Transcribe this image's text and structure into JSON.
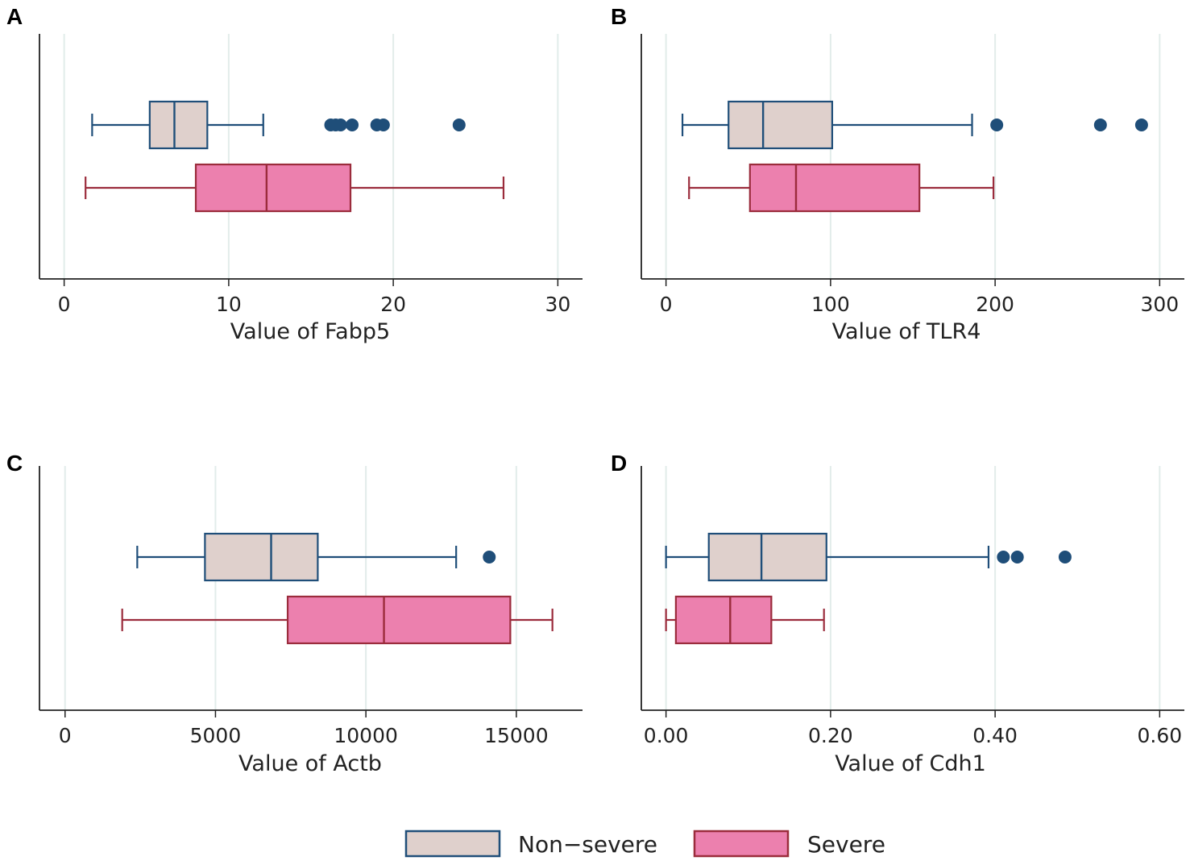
{
  "chart_data": [
    {
      "type": "boxplot",
      "panel_label": "A",
      "xlabel": "Value of Fabp5",
      "xlim": [
        -1.5,
        31.5
      ],
      "ticks": [
        0,
        10,
        20,
        30
      ],
      "tick_labels": [
        "0",
        "10",
        "20",
        "30"
      ],
      "grid": true,
      "series": [
        {
          "name": "Non−severe",
          "whisker_low": 1.7,
          "q1": 5.2,
          "median": 6.7,
          "q3": 8.7,
          "whisker_high": 12.1,
          "outliers": [
            16.2,
            16.5,
            16.8,
            17.5,
            19.0,
            19.4,
            24.0
          ]
        },
        {
          "name": "Severe",
          "whisker_low": 1.3,
          "q1": 8.0,
          "median": 12.3,
          "q3": 17.4,
          "whisker_high": 26.7,
          "outliers": []
        }
      ]
    },
    {
      "type": "boxplot",
      "panel_label": "B",
      "xlabel": "Value of TLR4",
      "xlim": [
        -15,
        315
      ],
      "ticks": [
        0,
        100,
        200,
        300
      ],
      "tick_labels": [
        "0",
        "100",
        "200",
        "300"
      ],
      "grid": true,
      "series": [
        {
          "name": "Non−severe",
          "whisker_low": 10,
          "q1": 38,
          "median": 59,
          "q3": 101,
          "whisker_high": 186,
          "outliers": [
            201,
            264,
            289
          ]
        },
        {
          "name": "Severe",
          "whisker_low": 14,
          "q1": 51,
          "median": 79,
          "q3": 154,
          "whisker_high": 199,
          "outliers": []
        }
      ]
    },
    {
      "type": "boxplot",
      "panel_label": "C",
      "xlabel": "Value of Actb",
      "xlim": [
        -850,
        17200
      ],
      "ticks": [
        0,
        5000,
        10000,
        15000
      ],
      "tick_labels": [
        "0",
        "5000",
        "10000",
        "15000"
      ],
      "grid": true,
      "series": [
        {
          "name": "Non−severe",
          "whisker_low": 2400,
          "q1": 4650,
          "median": 6850,
          "q3": 8400,
          "whisker_high": 13000,
          "outliers": [
            14100
          ]
        },
        {
          "name": "Severe",
          "whisker_low": 1900,
          "q1": 7400,
          "median": 10600,
          "q3": 14800,
          "whisker_high": 16200,
          "outliers": []
        }
      ]
    },
    {
      "type": "boxplot",
      "panel_label": "D",
      "xlabel": "Value of Cdh1",
      "xlim": [
        -0.03,
        0.63
      ],
      "ticks": [
        0,
        0.2,
        0.4,
        0.6
      ],
      "tick_labels": [
        "0.00",
        "0.20",
        "0.40",
        "0.60"
      ],
      "grid": true,
      "series": [
        {
          "name": "Non−severe",
          "whisker_low": 0.0,
          "q1": 0.052,
          "median": 0.116,
          "q3": 0.195,
          "whisker_high": 0.392,
          "outliers": [
            0.41,
            0.427,
            0.485
          ]
        },
        {
          "name": "Severe",
          "whisker_low": 0.0,
          "q1": 0.012,
          "median": 0.078,
          "q3": 0.128,
          "whisker_high": 0.192,
          "outliers": []
        }
      ]
    }
  ],
  "legend": {
    "placement": "bottom-center",
    "items": [
      {
        "label": "Non−severe",
        "fill": "#dfd0cc",
        "stroke": "#1f4e79"
      },
      {
        "label": "Severe",
        "fill": "#ec80ae",
        "stroke": "#9b2c3c"
      }
    ]
  },
  "colors": {
    "non_severe_fill": "#dfd0cc",
    "non_severe_stroke": "#1f4e79",
    "severe_fill": "#ec80ae",
    "severe_stroke": "#9b2c3c",
    "outlier": "#1f4e79",
    "grid": "#e2ecea",
    "axis": "#222222"
  }
}
